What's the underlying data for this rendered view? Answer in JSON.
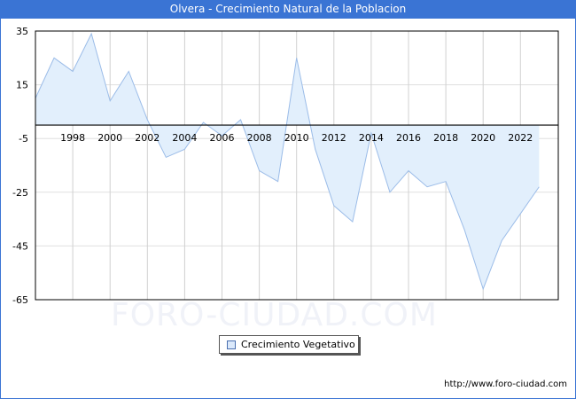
{
  "header": {
    "title": "Olvera - Crecimiento Natural de la Poblacion"
  },
  "legend": {
    "label": "Crecimiento Vegetativo",
    "swatch_color": "#dbe9fb"
  },
  "footer": {
    "url": "http://www.foro-ciudad.com"
  },
  "watermark": {
    "text": "FORO-CIUDAD.COM"
  },
  "colors": {
    "title_bar": "#3a74d4",
    "line": "#9bbce8",
    "fill": "#e2effc",
    "zero_line": "#000000",
    "grid": "#d0d0d0"
  },
  "chart_data": {
    "type": "area",
    "title": "Olvera - Crecimiento Natural de la Poblacion",
    "xlabel": "",
    "ylabel": "",
    "x": [
      1996,
      1997,
      1998,
      1999,
      2000,
      2001,
      2002,
      2003,
      2004,
      2005,
      2006,
      2007,
      2008,
      2009,
      2010,
      2011,
      2012,
      2013,
      2014,
      2015,
      2016,
      2017,
      2018,
      2019,
      2020,
      2021,
      2022,
      2023
    ],
    "series": [
      {
        "name": "Crecimiento Vegetativo",
        "values": [
          10,
          25,
          20,
          34,
          9,
          20,
          2,
          -12,
          -9,
          1,
          -4,
          2,
          -17,
          -21,
          25,
          -9,
          -30,
          -36,
          -3,
          -25,
          -17,
          -23,
          -21,
          -39,
          -61,
          -43,
          -33,
          -23
        ]
      }
    ],
    "x_tick_labels": [
      "1998",
      "2000",
      "2002",
      "2004",
      "2006",
      "2008",
      "2010",
      "2012",
      "2014",
      "2016",
      "2018",
      "2020",
      "2022"
    ],
    "y_tick_labels": [
      "35",
      "15",
      "-5",
      "-25",
      "-45",
      "-65"
    ],
    "ylim": [
      -65,
      35
    ],
    "xlim": [
      1996,
      2024
    ],
    "grid": true,
    "legend_position": "bottom-center"
  }
}
